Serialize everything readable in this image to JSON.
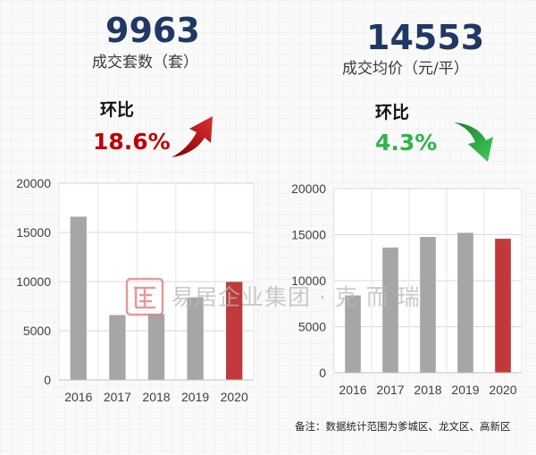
{
  "colors": {
    "grey_bar": "#a6a6a6",
    "red_bar": "#c0393b",
    "up_red": "#c00000",
    "down_green": "#2db54a",
    "kpi_blue": "#1f3864"
  },
  "left": {
    "kpi_value": "9963",
    "kpi_label": "成交套数（套）",
    "hb_label": "环比",
    "hb_value": "18.6%",
    "hb_direction": "up",
    "icon": "up-arrow-icon"
  },
  "right": {
    "kpi_value": "14553",
    "kpi_label": "成交均价（元/平）",
    "hb_label": "环比",
    "hb_value": "4.3%",
    "hb_direction": "down",
    "icon": "down-arrow-icon"
  },
  "watermark": {
    "logo_text": "易居",
    "text": "易居企业集团 · 克 而 瑞"
  },
  "note": "备注：数据统计范围为爹城区、龙文区、高新区",
  "chart_data": [
    {
      "type": "bar",
      "categories": [
        "2016",
        "2017",
        "2018",
        "2019",
        "2020"
      ],
      "values": [
        16600,
        6600,
        6700,
        8400,
        9963
      ],
      "highlight_index": 4,
      "ylim": [
        0,
        20000
      ],
      "yticks": [
        "0",
        "5000",
        "10000",
        "15000",
        "20000"
      ],
      "grid": true,
      "title": "",
      "xlabel": "",
      "ylabel": ""
    },
    {
      "type": "bar",
      "categories": [
        "2016",
        "2017",
        "2018",
        "2019",
        "2020"
      ],
      "values": [
        8400,
        13600,
        14750,
        15200,
        14553
      ],
      "highlight_index": 4,
      "ylim": [
        0,
        20000
      ],
      "yticks": [
        "0",
        "5000",
        "10000",
        "15000",
        "20000"
      ],
      "grid": true,
      "title": "",
      "xlabel": "",
      "ylabel": ""
    }
  ]
}
